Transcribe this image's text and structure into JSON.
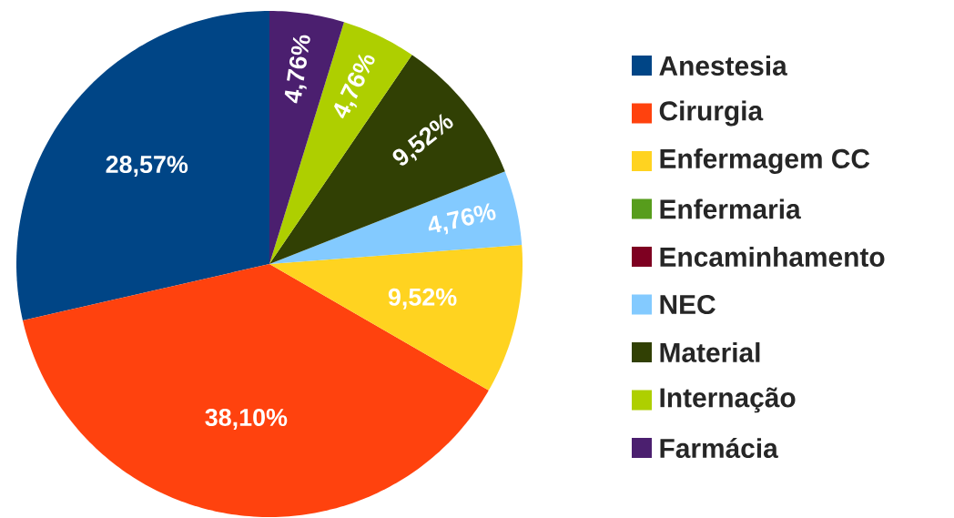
{
  "chart_data": {
    "type": "pie",
    "categories": [
      "Anestesia",
      "Cirurgia",
      "Enfermagem CC",
      "Enfermaria",
      "Encaminhamento",
      "NEC",
      "Material",
      "Internação",
      "Farmácia"
    ],
    "values": [
      28.57,
      38.1,
      9.52,
      0,
      0,
      4.76,
      9.52,
      4.76,
      4.76
    ],
    "value_labels": [
      "28,57%",
      "38,10%",
      "9,52%",
      null,
      null,
      "4,76%",
      "9,52%",
      "4,76%",
      "4,76%"
    ],
    "colors": [
      "#004586",
      "#ff420e",
      "#ffd320",
      "#579d1c",
      "#7e0021",
      "#83caff",
      "#314004",
      "#aecf00",
      "#4b1f6f"
    ],
    "legend": "right"
  }
}
